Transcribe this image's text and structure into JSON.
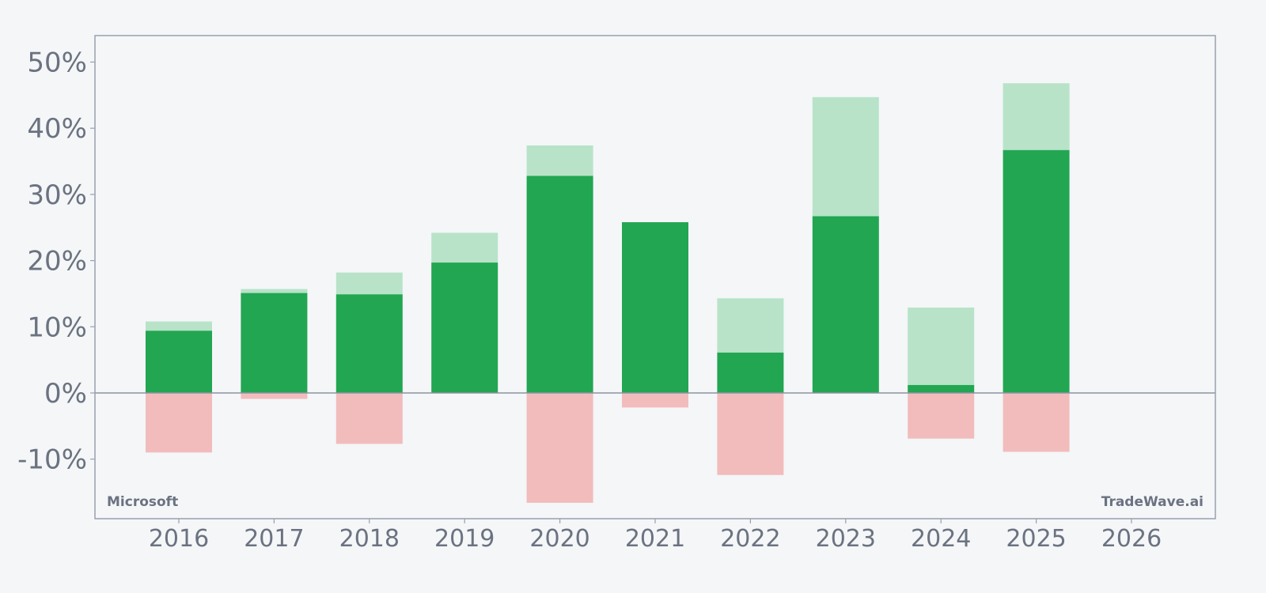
{
  "chart_data": {
    "type": "bar",
    "subtype": "floating range bars with closing value (green = gain, light green = high above close, light red = low below zero)",
    "categories": [
      "2016",
      "2017",
      "2018",
      "2019",
      "2020",
      "2021",
      "2022",
      "2023",
      "2024",
      "2025",
      "2026"
    ],
    "series": [
      {
        "values": [
          9.4,
          15.1,
          14.9,
          19.7,
          32.8,
          25.8,
          6.1,
          26.7,
          1.2,
          36.7,
          null
        ]
      },
      {
        "values": [
          10.8,
          15.7,
          18.2,
          24.2,
          37.4,
          25.8,
          14.3,
          44.7,
          12.9,
          46.8,
          null
        ]
      },
      {
        "values": [
          -9.0,
          -0.9,
          -7.7,
          0.0,
          -16.6,
          -2.2,
          -12.4,
          0.0,
          -6.9,
          -8.9,
          null
        ]
      }
    ],
    "ylim": [
      -19,
      54
    ],
    "yticks": [
      -10,
      0,
      10,
      20,
      30,
      40,
      50
    ],
    "ytick_labels": [
      "-10%",
      "0%",
      "10%",
      "20%",
      "30%",
      "40%",
      "50%"
    ],
    "xlabel": "",
    "ylabel": "",
    "grid": false,
    "legend": "none",
    "colors": {
      "close": "#22a652",
      "high": "#b8e3c8",
      "low": "#f2bcbc",
      "axis": "#9aa0ad",
      "zero_line": "#8d93a0",
      "text": "#6b7280",
      "background": "#f4f6f8"
    }
  },
  "labels": {
    "left_corner": "Microsoft",
    "right_corner": "TradeWave.ai"
  }
}
